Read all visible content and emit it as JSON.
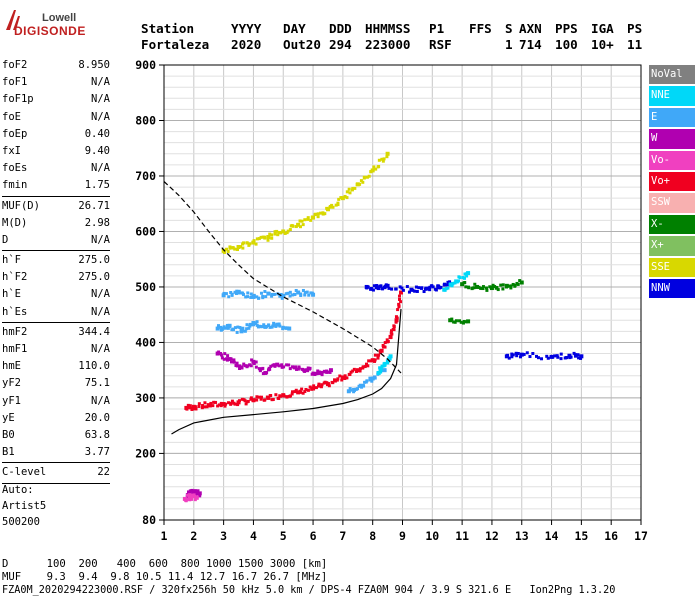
{
  "logo": {
    "line1": "Lowell",
    "line2": "DIGISONDE"
  },
  "header": {
    "row1": [
      "Station",
      "YYYY",
      "DAY",
      "DDD",
      "HHMMSS",
      "P1",
      "FFS",
      "S",
      "AXN",
      "PPS",
      "IGA",
      "PS"
    ],
    "row2": [
      "Fortaleza",
      "2020",
      "Out20",
      "294",
      "223000",
      "RSF",
      "",
      "1",
      "714",
      "100",
      "10+",
      "11"
    ]
  },
  "params": {
    "group1": [
      {
        "name": "foF2",
        "value": "8.950"
      },
      {
        "name": "foF1",
        "value": "N/A"
      },
      {
        "name": "foF1p",
        "value": "N/A"
      },
      {
        "name": "foE",
        "value": "N/A"
      },
      {
        "name": "foEp",
        "value": "0.40"
      },
      {
        "name": "fxI",
        "value": "9.40"
      },
      {
        "name": "foEs",
        "value": "N/A"
      },
      {
        "name": "fmin",
        "value": "1.75"
      }
    ],
    "group2": [
      {
        "name": "MUF(D)",
        "value": "26.71"
      },
      {
        "name": "M(D)",
        "value": "2.98"
      },
      {
        "name": "D",
        "value": "N/A"
      }
    ],
    "group3": [
      {
        "name": "h`F",
        "value": "275.0"
      },
      {
        "name": "h`F2",
        "value": "275.0"
      },
      {
        "name": "h`E",
        "value": "N/A"
      },
      {
        "name": "h`Es",
        "value": "N/A"
      }
    ],
    "group4": [
      {
        "name": "hmF2",
        "value": "344.4"
      },
      {
        "name": "hmF1",
        "value": "N/A"
      },
      {
        "name": "hmE",
        "value": "110.0"
      },
      {
        "name": "yF2",
        "value": "75.1"
      },
      {
        "name": "yF1",
        "value": "N/A"
      },
      {
        "name": "yE",
        "value": "20.0"
      },
      {
        "name": "B0",
        "value": "63.8"
      },
      {
        "name": "B1",
        "value": "3.77"
      }
    ],
    "group5": [
      {
        "name": "C-level",
        "value": "22"
      }
    ]
  },
  "auto": {
    "line1": "Auto:",
    "line2": "Artist5",
    "line3": "500200"
  },
  "legend": [
    {
      "label": "NoVal",
      "color": "#808080"
    },
    {
      "label": "NNE",
      "color": "#00d8f8"
    },
    {
      "label": "E",
      "color": "#40a8f8"
    },
    {
      "label": "W",
      "color": "#b000b0"
    },
    {
      "label": "Vo-",
      "color": "#f040c0"
    },
    {
      "label": "Vo+",
      "color": "#f00020"
    },
    {
      "label": "SSW",
      "color": "#f8b0b0"
    },
    {
      "label": "X-",
      "color": "#008000"
    },
    {
      "label": "X+",
      "color": "#80c060"
    },
    {
      "label": "SSE",
      "color": "#d8d800"
    },
    {
      "label": "NNW",
      "color": "#0000e0"
    }
  ],
  "bottom": {
    "d_row": "D      100  200   400  600  800 1000 1500 3000 [km]",
    "muf_row": "MUF    9.3  9.4  9.8 10.5 11.4 12.7 16.7 26.7 [MHz]",
    "footer": "FZA0M_2020294223000.RSF / 320fx256h 50 kHz 5.0 km / DPS-4 FZA0M 904 / 3.9 S 321.6 E   Ion2Png 1.3.20"
  },
  "chart_data": {
    "type": "scatter",
    "title": "",
    "xlabel": "",
    "ylabel": "",
    "xlim": [
      1,
      17
    ],
    "ylim": [
      80,
      900
    ],
    "xticks": [
      1,
      2,
      3,
      4,
      5,
      6,
      7,
      8,
      9,
      10,
      11,
      12,
      13,
      14,
      15,
      16,
      17
    ],
    "yticks": [
      80,
      200,
      300,
      400,
      500,
      600,
      700,
      800,
      900
    ],
    "ytick_labels": [
      "80",
      "200",
      "300",
      "400",
      "500",
      "600",
      "700",
      "800",
      "900"
    ],
    "grid": true,
    "series": [
      {
        "name": "Vo+",
        "role": "o-trace",
        "color": "#f00020",
        "x": [
          1.75,
          2.0,
          2.5,
          3.0,
          3.5,
          4.0,
          4.5,
          5.0,
          5.5,
          6.0,
          6.5,
          7.0,
          7.5,
          8.0,
          8.3,
          8.6,
          8.8,
          8.95
        ],
        "y": [
          282,
          284,
          287,
          289,
          292,
          296,
          300,
          305,
          310,
          317,
          325,
          337,
          350,
          368,
          385,
          410,
          440,
          490
        ]
      },
      {
        "name": "E",
        "role": "spread-F2",
        "color": "#40a8f8",
        "x": [
          2.8,
          3.2,
          3.6,
          4.0,
          4.4,
          4.8,
          5.2,
          3.0,
          3.5,
          4.0,
          4.5,
          5.0,
          5.5,
          6.0,
          7.2,
          7.6,
          8.0,
          8.4
        ],
        "y": [
          425,
          430,
          420,
          435,
          428,
          432,
          425,
          485,
          490,
          482,
          488,
          484,
          490,
          486,
          312,
          322,
          335,
          350
        ]
      },
      {
        "name": "W",
        "role": "oblique",
        "color": "#b000b0",
        "x": [
          2.8,
          3.2,
          3.6,
          4.0,
          4.4,
          4.8,
          5.4,
          5.8,
          6.2,
          6.6,
          1.8,
          2.0,
          2.2
        ],
        "y": [
          380,
          370,
          355,
          365,
          345,
          360,
          355,
          350,
          345,
          350,
          125,
          130,
          128
        ]
      },
      {
        "name": "SSE",
        "role": "second-hop",
        "color": "#d8d800",
        "x": [
          3.0,
          3.5,
          4.0,
          4.5,
          5.0,
          5.5,
          6.0,
          6.5,
          7.0,
          7.5,
          8.0,
          8.5
        ],
        "y": [
          565,
          572,
          580,
          590,
          600,
          612,
          625,
          640,
          660,
          685,
          710,
          740
        ]
      },
      {
        "name": "NNW",
        "role": "oblique-high",
        "color": "#0000e0",
        "x": [
          7.8,
          8.2,
          8.5,
          9.3,
          9.8,
          10.2,
          10.6,
          12.5,
          13.0,
          14.0,
          14.6,
          15.0
        ],
        "y": [
          500,
          498,
          502,
          495,
          497,
          500,
          505,
          375,
          378,
          374,
          376,
          375
        ]
      },
      {
        "name": "X-",
        "role": "x-mode",
        "color": "#008000",
        "x": [
          11.0,
          11.5,
          12.0,
          12.5,
          13.0,
          10.6,
          11.2
        ],
        "y": [
          505,
          500,
          498,
          502,
          508,
          440,
          438
        ]
      },
      {
        "name": "NNE",
        "role": "misc",
        "color": "#00d8f8",
        "x": [
          8.2,
          8.4,
          8.6,
          10.4,
          10.8,
          11.2
        ],
        "y": [
          345,
          360,
          375,
          495,
          510,
          525
        ]
      },
      {
        "name": "Vo-",
        "role": "low-echo",
        "color": "#f040c0",
        "x": [
          1.7,
          1.9,
          2.1
        ],
        "y": [
          118,
          122,
          120
        ]
      }
    ],
    "profile_lines": [
      {
        "name": "",
        "style": "solid",
        "color": "#000000",
        "x": [
          1.25,
          1.5,
          2.0,
          2.5,
          3.0,
          4.0,
          5.0,
          6.0,
          7.0,
          7.5,
          8.0,
          8.3,
          8.6,
          8.8,
          8.95
        ],
        "y": [
          235,
          243,
          255,
          260,
          265,
          270,
          275,
          281,
          290,
          297,
          307,
          317,
          335,
          360,
          460
        ]
      },
      {
        "name": "",
        "style": "dashed",
        "color": "#000000",
        "x": [
          1.0,
          1.5,
          2.0,
          2.5,
          3.0,
          3.5,
          4.0,
          5.0,
          6.0,
          7.0,
          8.0,
          8.5,
          8.95
        ],
        "y": [
          690,
          665,
          635,
          600,
          567,
          540,
          515,
          482,
          455,
          425,
          392,
          370,
          345
        ]
      }
    ]
  }
}
